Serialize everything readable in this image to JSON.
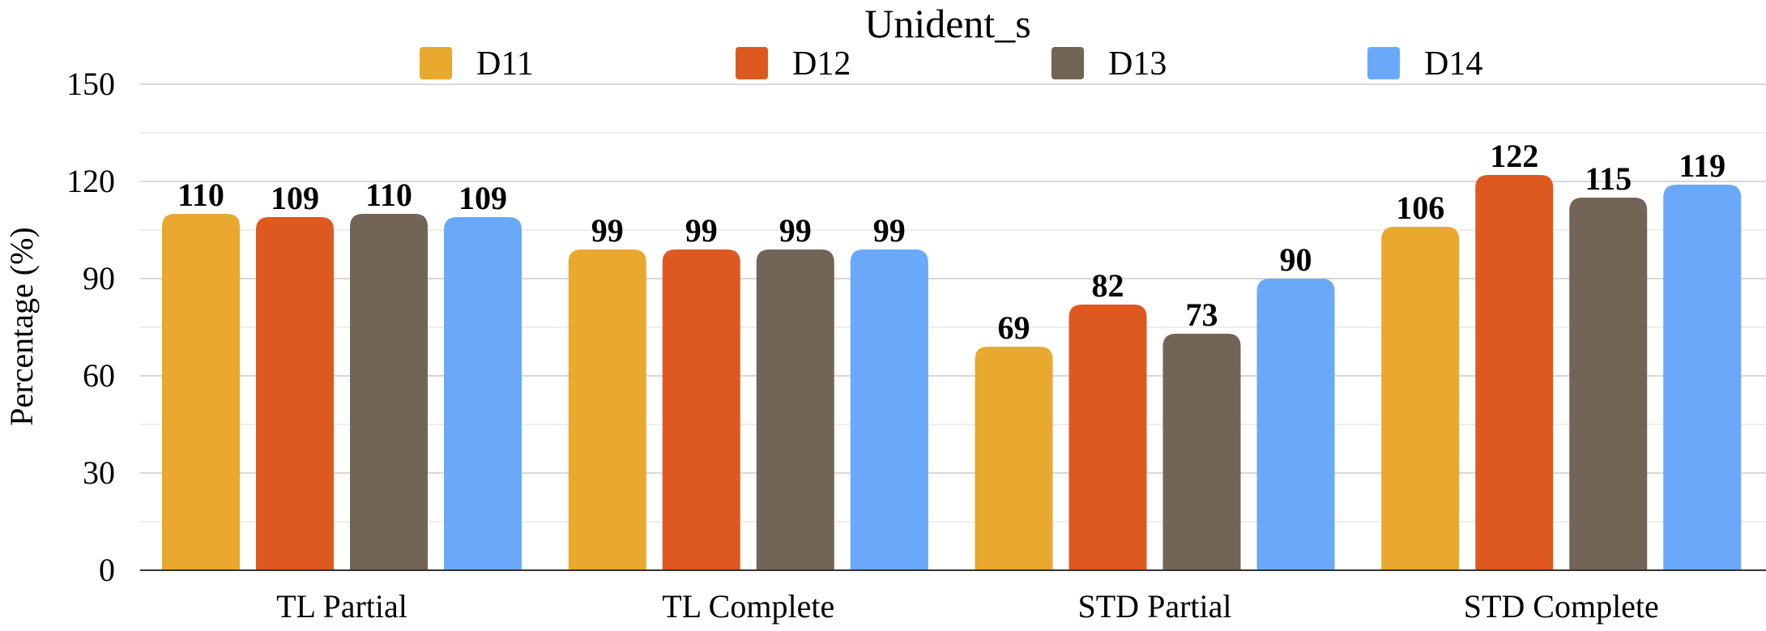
{
  "chart_data": {
    "type": "bar",
    "title": "Unident_s",
    "xlabel": "",
    "ylabel": "Percentage (%)",
    "ylim": [
      0,
      150
    ],
    "yticks": [
      0,
      30,
      60,
      90,
      120,
      150
    ],
    "grid": true,
    "legend_position": "top",
    "categories": [
      "TL Partial",
      "TL Complete",
      "STD Partial",
      "STD Complete"
    ],
    "series": [
      {
        "name": "D11",
        "color": "#E9A82E",
        "values": [
          110,
          99,
          69,
          106
        ]
      },
      {
        "name": "D12",
        "color": "#DD5920",
        "values": [
          109,
          99,
          82,
          122
        ]
      },
      {
        "name": "D13",
        "color": "#726457",
        "values": [
          110,
          99,
          73,
          115
        ]
      },
      {
        "name": "D14",
        "color": "#6AA9F9",
        "values": [
          109,
          99,
          90,
          119
        ]
      }
    ]
  }
}
